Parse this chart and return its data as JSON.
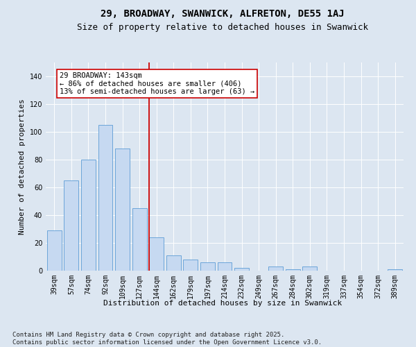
{
  "title": "29, BROADWAY, SWANWICK, ALFRETON, DE55 1AJ",
  "subtitle": "Size of property relative to detached houses in Swanwick",
  "xlabel": "Distribution of detached houses by size in Swanwick",
  "ylabel": "Number of detached properties",
  "categories": [
    "39sqm",
    "57sqm",
    "74sqm",
    "92sqm",
    "109sqm",
    "127sqm",
    "144sqm",
    "162sqm",
    "179sqm",
    "197sqm",
    "214sqm",
    "232sqm",
    "249sqm",
    "267sqm",
    "284sqm",
    "302sqm",
    "319sqm",
    "337sqm",
    "354sqm",
    "372sqm",
    "389sqm"
  ],
  "values": [
    29,
    65,
    80,
    105,
    88,
    45,
    24,
    11,
    8,
    6,
    6,
    2,
    0,
    3,
    1,
    3,
    0,
    0,
    0,
    0,
    1
  ],
  "bar_color": "#c6d9f1",
  "bar_edge_color": "#5b9bd5",
  "marker_line_color": "#cc0000",
  "annotation_text": "29 BROADWAY: 143sqm\n← 86% of detached houses are smaller (406)\n13% of semi-detached houses are larger (63) →",
  "annotation_box_color": "#ffffff",
  "annotation_box_edge_color": "#cc0000",
  "ylim": [
    0,
    150
  ],
  "yticks": [
    0,
    20,
    40,
    60,
    80,
    100,
    120,
    140
  ],
  "background_color": "#dce6f1",
  "plot_background_color": "#dce6f1",
  "grid_color": "#ffffff",
  "footer_text": "Contains HM Land Registry data © Crown copyright and database right 2025.\nContains public sector information licensed under the Open Government Licence v3.0.",
  "title_fontsize": 10,
  "subtitle_fontsize": 9,
  "axis_label_fontsize": 8,
  "tick_fontsize": 7,
  "annotation_fontsize": 7.5,
  "footer_fontsize": 6.5
}
